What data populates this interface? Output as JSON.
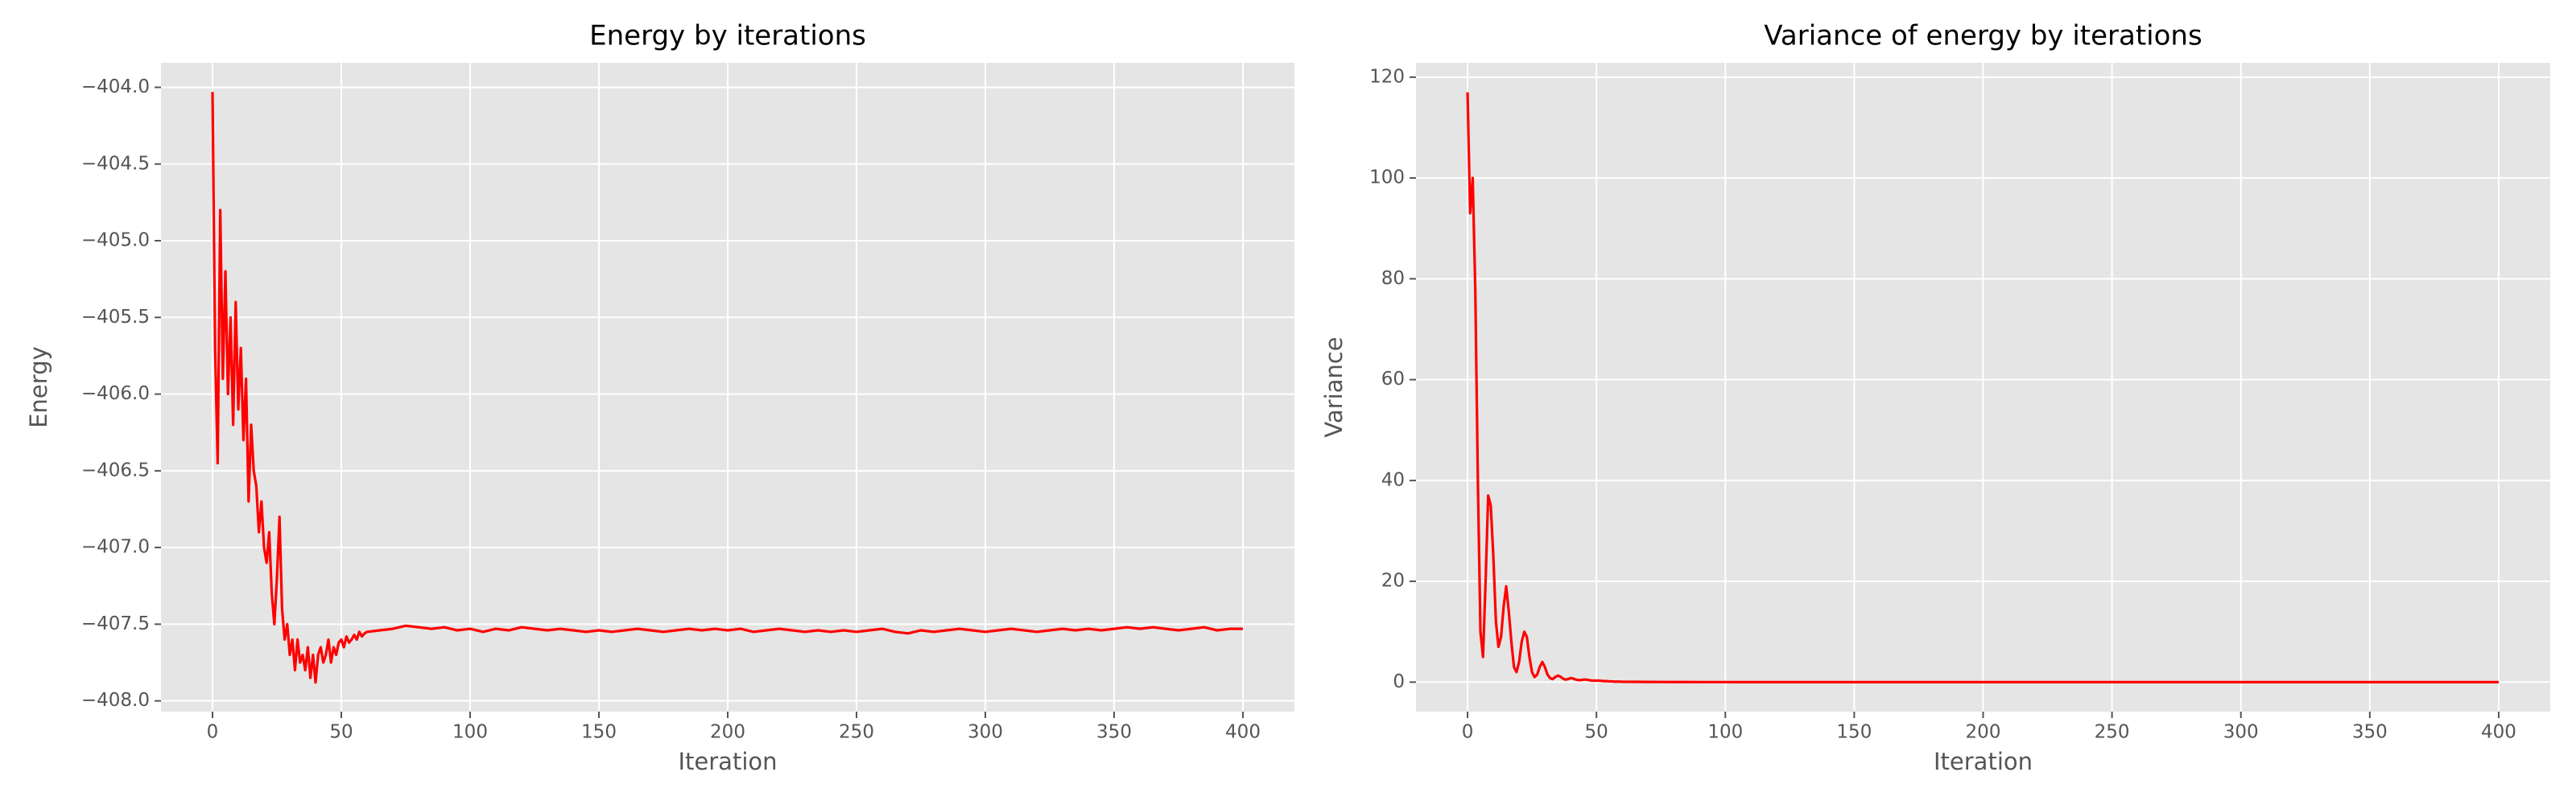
{
  "chart_data": [
    {
      "type": "line",
      "title": "Energy by iterations",
      "x_label": "Iteration",
      "y_label": "Energy",
      "color": "#ff0000",
      "grid": true,
      "xlim": [
        -20,
        420
      ],
      "xticks": [
        0,
        50,
        100,
        150,
        200,
        250,
        300,
        350,
        400
      ],
      "ylim": [
        -408.07,
        -403.84
      ],
      "yticks": [
        {
          "value": -408.0,
          "label": "−408.0"
        },
        {
          "value": -407.5,
          "label": "−407.5"
        },
        {
          "value": -407.0,
          "label": "−407.0"
        },
        {
          "value": -406.5,
          "label": "−406.5"
        },
        {
          "value": -406.0,
          "label": "−406.0"
        },
        {
          "value": -405.5,
          "label": "−405.5"
        },
        {
          "value": -405.0,
          "label": "−405.0"
        },
        {
          "value": -404.5,
          "label": "−404.5"
        },
        {
          "value": -404.0,
          "label": "−404.0"
        }
      ],
      "x": [
        0,
        1,
        2,
        3,
        4,
        5,
        6,
        7,
        8,
        9,
        10,
        11,
        12,
        13,
        14,
        15,
        16,
        17,
        18,
        19,
        20,
        21,
        22,
        23,
        24,
        25,
        26,
        27,
        28,
        29,
        30,
        31,
        32,
        33,
        34,
        35,
        36,
        37,
        38,
        39,
        40,
        41,
        42,
        43,
        44,
        45,
        46,
        47,
        48,
        49,
        50,
        51,
        52,
        53,
        54,
        55,
        56,
        57,
        58,
        59,
        60,
        65,
        70,
        75,
        80,
        85,
        90,
        95,
        100,
        105,
        110,
        115,
        120,
        125,
        130,
        135,
        140,
        145,
        150,
        155,
        160,
        165,
        170,
        175,
        180,
        185,
        190,
        195,
        200,
        205,
        210,
        215,
        220,
        225,
        230,
        235,
        240,
        245,
        250,
        255,
        260,
        265,
        270,
        275,
        280,
        285,
        290,
        295,
        300,
        305,
        310,
        315,
        320,
        325,
        330,
        335,
        340,
        345,
        350,
        355,
        360,
        365,
        370,
        375,
        380,
        385,
        390,
        395,
        400
      ],
      "values": [
        -404.03,
        -405.7,
        -406.45,
        -404.8,
        -405.9,
        -405.2,
        -406.0,
        -405.5,
        -406.2,
        -405.4,
        -406.1,
        -405.7,
        -406.3,
        -405.9,
        -406.7,
        -406.2,
        -406.5,
        -406.6,
        -406.9,
        -406.7,
        -407.0,
        -407.1,
        -406.9,
        -407.3,
        -407.5,
        -407.2,
        -406.8,
        -407.4,
        -407.6,
        -407.5,
        -407.7,
        -407.6,
        -407.8,
        -407.6,
        -407.75,
        -407.7,
        -407.8,
        -407.65,
        -407.85,
        -407.7,
        -407.88,
        -407.7,
        -407.65,
        -407.75,
        -407.7,
        -407.6,
        -407.75,
        -407.65,
        -407.7,
        -407.62,
        -407.6,
        -407.65,
        -407.58,
        -407.62,
        -407.6,
        -407.57,
        -407.6,
        -407.55,
        -407.58,
        -407.56,
        -407.55,
        -407.54,
        -407.53,
        -407.51,
        -407.52,
        -407.53,
        -407.52,
        -407.54,
        -407.53,
        -407.55,
        -407.53,
        -407.54,
        -407.52,
        -407.53,
        -407.54,
        -407.53,
        -407.54,
        -407.55,
        -407.54,
        -407.55,
        -407.54,
        -407.53,
        -407.54,
        -407.55,
        -407.54,
        -407.53,
        -407.54,
        -407.53,
        -407.54,
        -407.53,
        -407.55,
        -407.54,
        -407.53,
        -407.54,
        -407.55,
        -407.54,
        -407.55,
        -407.54,
        -407.55,
        -407.54,
        -407.53,
        -407.55,
        -407.56,
        -407.54,
        -407.55,
        -407.54,
        -407.53,
        -407.54,
        -407.55,
        -407.54,
        -407.53,
        -407.54,
        -407.55,
        -407.54,
        -407.53,
        -407.54,
        -407.53,
        -407.54,
        -407.53,
        -407.52,
        -407.53,
        -407.52,
        -407.53,
        -407.54,
        -407.53,
        -407.52,
        -407.54,
        -407.53,
        -407.53
      ]
    },
    {
      "type": "line",
      "title": "Variance of energy by iterations",
      "x_label": "Iteration",
      "y_label": "Variance",
      "color": "#ff0000",
      "grid": true,
      "xlim": [
        -20,
        420
      ],
      "xticks": [
        0,
        50,
        100,
        150,
        200,
        250,
        300,
        350,
        400
      ],
      "ylim": [
        -5.85,
        122.85
      ],
      "yticks": [
        0,
        20,
        40,
        60,
        80,
        100,
        120
      ],
      "x": [
        0,
        1,
        2,
        3,
        4,
        5,
        6,
        7,
        8,
        9,
        10,
        11,
        12,
        13,
        14,
        15,
        16,
        17,
        18,
        19,
        20,
        21,
        22,
        23,
        24,
        25,
        26,
        27,
        28,
        29,
        30,
        31,
        32,
        33,
        34,
        35,
        36,
        37,
        38,
        39,
        40,
        41,
        42,
        43,
        44,
        45,
        46,
        47,
        48,
        49,
        50,
        51,
        52,
        53,
        54,
        55,
        56,
        57,
        58,
        59,
        60,
        65,
        70,
        75,
        80,
        85,
        90,
        95,
        100,
        105,
        110,
        115,
        120,
        125,
        130,
        135,
        140,
        145,
        150,
        155,
        160,
        165,
        170,
        175,
        180,
        185,
        190,
        195,
        200,
        205,
        210,
        215,
        220,
        225,
        230,
        235,
        240,
        245,
        250,
        255,
        260,
        265,
        270,
        275,
        280,
        285,
        290,
        295,
        300,
        305,
        310,
        315,
        320,
        325,
        330,
        335,
        340,
        345,
        350,
        355,
        360,
        365,
        370,
        375,
        380,
        385,
        390,
        395,
        400
      ],
      "values": [
        117,
        93,
        100,
        78,
        40,
        10,
        5,
        20,
        37,
        35,
        25,
        12,
        7,
        9,
        15,
        19,
        14,
        8,
        3,
        2,
        4,
        8,
        10,
        9,
        5,
        2,
        1,
        1.5,
        3,
        4,
        3,
        1.5,
        0.8,
        0.6,
        1,
        1.3,
        1.1,
        0.7,
        0.5,
        0.6,
        0.8,
        0.7,
        0.5,
        0.4,
        0.4,
        0.5,
        0.5,
        0.4,
        0.3,
        0.3,
        0.3,
        0.3,
        0.25,
        0.2,
        0.2,
        0.15,
        0.15,
        0.1,
        0.1,
        0.1,
        0.08,
        0.06,
        0.04,
        0.03,
        0.02,
        0.02,
        0.01,
        0.01,
        0.01,
        0,
        0,
        0,
        0,
        0,
        0,
        0,
        0,
        0,
        0,
        0,
        0,
        0,
        0,
        0,
        0,
        0,
        0,
        0,
        0,
        0,
        0,
        0,
        0,
        0,
        0,
        0,
        0,
        0,
        0,
        0,
        0,
        0,
        0,
        0,
        0,
        0,
        0,
        0,
        0,
        0,
        0,
        0,
        0,
        0,
        0,
        0,
        0,
        0,
        0,
        0,
        0,
        0,
        0,
        0,
        0,
        0,
        0,
        0,
        0
      ]
    }
  ]
}
